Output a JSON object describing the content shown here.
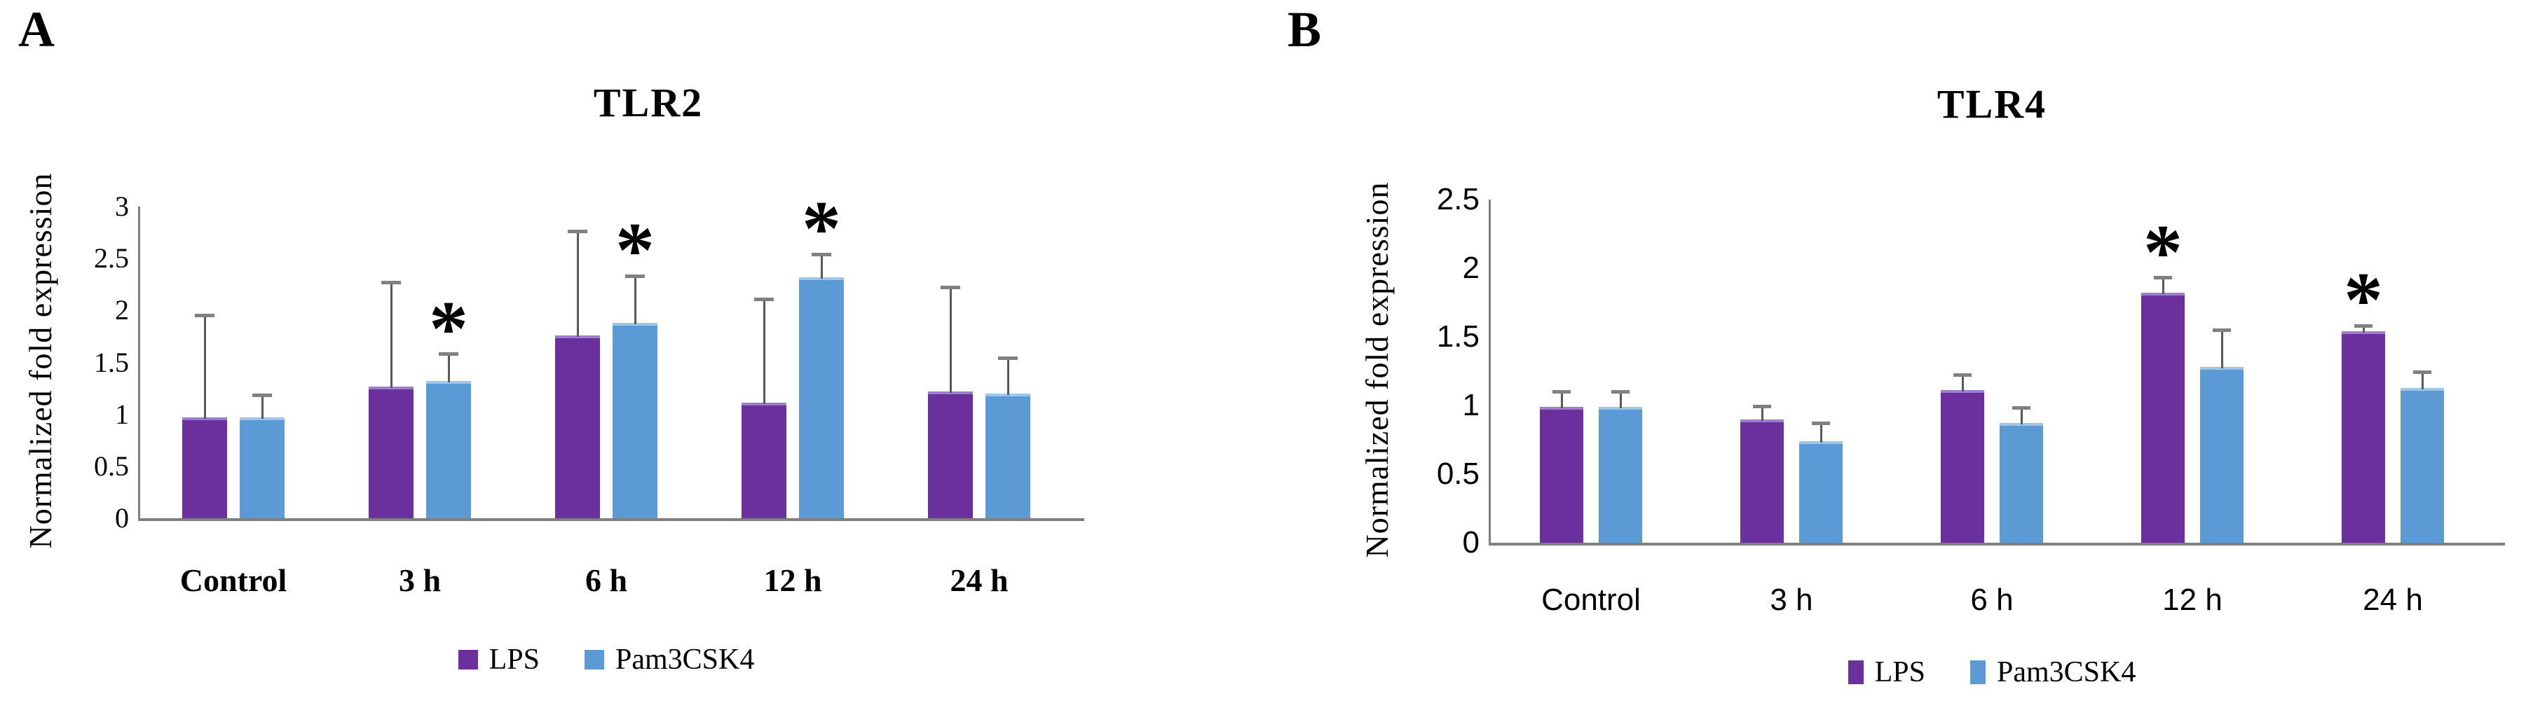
{
  "figure": {
    "background": "#FFFFFF"
  },
  "colors": {
    "lps": "#6B2F9E",
    "pam3csk4": "#5B9AD5",
    "lps_top_edge": "#9B7FCB",
    "pam3csk4_top_edge": "#9DC6E8",
    "error_bar_line": "#595959",
    "error_bar_cap": "#808080",
    "axis_line": "#7F7F7F",
    "asterisk": "#000000",
    "text": "#000000"
  },
  "chart_data": [
    {
      "type": "bar",
      "panel_label": "A",
      "title": "TLR2",
      "xlabel": "",
      "ylabel": "Normalized fold expression",
      "categories": [
        "Control",
        "3 h",
        "6 h",
        "12 h",
        "24 h"
      ],
      "series": [
        {
          "name": "LPS",
          "color": "#6B2F9E",
          "values": [
            0.97,
            1.27,
            1.76,
            1.11,
            1.22
          ],
          "errors_up": [
            0.98,
            1.0,
            1.0,
            1.0,
            1.0
          ],
          "significant": [
            false,
            false,
            false,
            false,
            false
          ]
        },
        {
          "name": "Pam3CSK4",
          "color": "#5B9AD5",
          "values": [
            0.97,
            1.32,
            1.88,
            2.32,
            1.2
          ],
          "errors_up": [
            0.21,
            0.26,
            0.45,
            0.22,
            0.34
          ],
          "significant": [
            false,
            true,
            true,
            true,
            false
          ]
        }
      ],
      "ylim": [
        0,
        3
      ],
      "ytick_step": 0.5,
      "grid": false,
      "error_bars": "upper",
      "significance_marker": "*",
      "legend_position": "bottom"
    },
    {
      "type": "bar",
      "panel_label": "B",
      "title": "TLR4",
      "xlabel": "",
      "ylabel": "Normalized fold expression",
      "categories": [
        "Control",
        "3 h",
        "6 h",
        "12 h",
        "24 h"
      ],
      "series": [
        {
          "name": "LPS",
          "color": "#6B2F9E",
          "values": [
            0.99,
            0.9,
            1.11,
            1.82,
            1.54
          ],
          "errors_up": [
            0.11,
            0.09,
            0.11,
            0.11,
            0.04
          ],
          "significant": [
            false,
            false,
            false,
            true,
            true
          ]
        },
        {
          "name": "Pam3CSK4",
          "color": "#5B9AD5",
          "values": [
            0.99,
            0.74,
            0.87,
            1.28,
            1.13
          ],
          "errors_up": [
            0.11,
            0.13,
            0.11,
            0.27,
            0.11
          ],
          "significant": [
            false,
            false,
            false,
            false,
            false
          ]
        }
      ],
      "ylim": [
        0,
        2.5
      ],
      "ytick_step": 0.5,
      "grid": false,
      "error_bars": "upper",
      "significance_marker": "*",
      "legend_position": "bottom"
    }
  ]
}
